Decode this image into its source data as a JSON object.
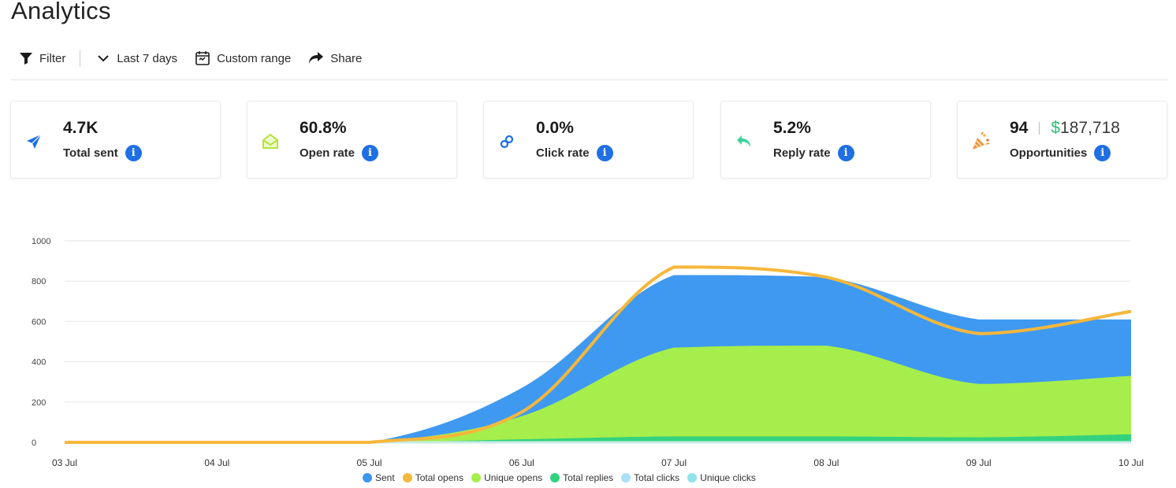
{
  "page": {
    "title": "Analytics"
  },
  "toolbar": {
    "filter_label": "Filter",
    "date_label": "Last 7 days",
    "custom_label": "Custom range",
    "share_label": "Share"
  },
  "cards": [
    {
      "value": "4.7K",
      "label": "Total sent",
      "icon": "paper-plane-icon",
      "color": "#1f6fe5"
    },
    {
      "value": "60.8%",
      "label": "Open rate",
      "icon": "envelope-open-icon",
      "color": "#b4e33b"
    },
    {
      "value": "0.0%",
      "label": "Click rate",
      "icon": "link-icon",
      "color": "#1f6fe5"
    },
    {
      "value": "5.2%",
      "label": "Reply rate",
      "icon": "reply-icon",
      "color": "#3fd19a"
    },
    {
      "value": "94",
      "money_sign": "$",
      "money_value": "187,718",
      "label": "Opportunities",
      "icon": "party-popper-icon",
      "color": "#f0903c"
    }
  ],
  "chart_data": {
    "type": "area",
    "x": [
      "03 Jul",
      "04 Jul",
      "05 Jul",
      "06 Jul",
      "07 Jul",
      "08 Jul",
      "09 Jul",
      "10 Jul"
    ],
    "ylim": [
      0,
      1000
    ],
    "yticks": [
      "1000",
      "800",
      "600",
      "400",
      "200",
      "0"
    ],
    "series": [
      {
        "name": "Sent",
        "color": "#3b97f0",
        "values": [
          0,
          0,
          0,
          270,
          830,
          820,
          610,
          610
        ]
      },
      {
        "name": "Total opens",
        "color": "#f5b73b",
        "values": [
          0,
          0,
          0,
          150,
          870,
          820,
          540,
          650
        ]
      },
      {
        "name": "Unique opens",
        "color": "#a6ee4b",
        "values": [
          0,
          0,
          0,
          130,
          470,
          480,
          290,
          330
        ]
      },
      {
        "name": "Total replies",
        "color": "#33d27f",
        "values": [
          0,
          0,
          0,
          15,
          30,
          30,
          25,
          40
        ]
      },
      {
        "name": "Total clicks",
        "color": "#a9e0f7",
        "values": [
          0,
          0,
          0,
          0,
          0,
          0,
          0,
          0
        ]
      },
      {
        "name": "Unique clicks",
        "color": "#8fe3ea",
        "values": [
          0,
          0,
          0,
          0,
          0,
          0,
          0,
          0
        ]
      }
    ],
    "grid": true,
    "legend": "bottom"
  }
}
